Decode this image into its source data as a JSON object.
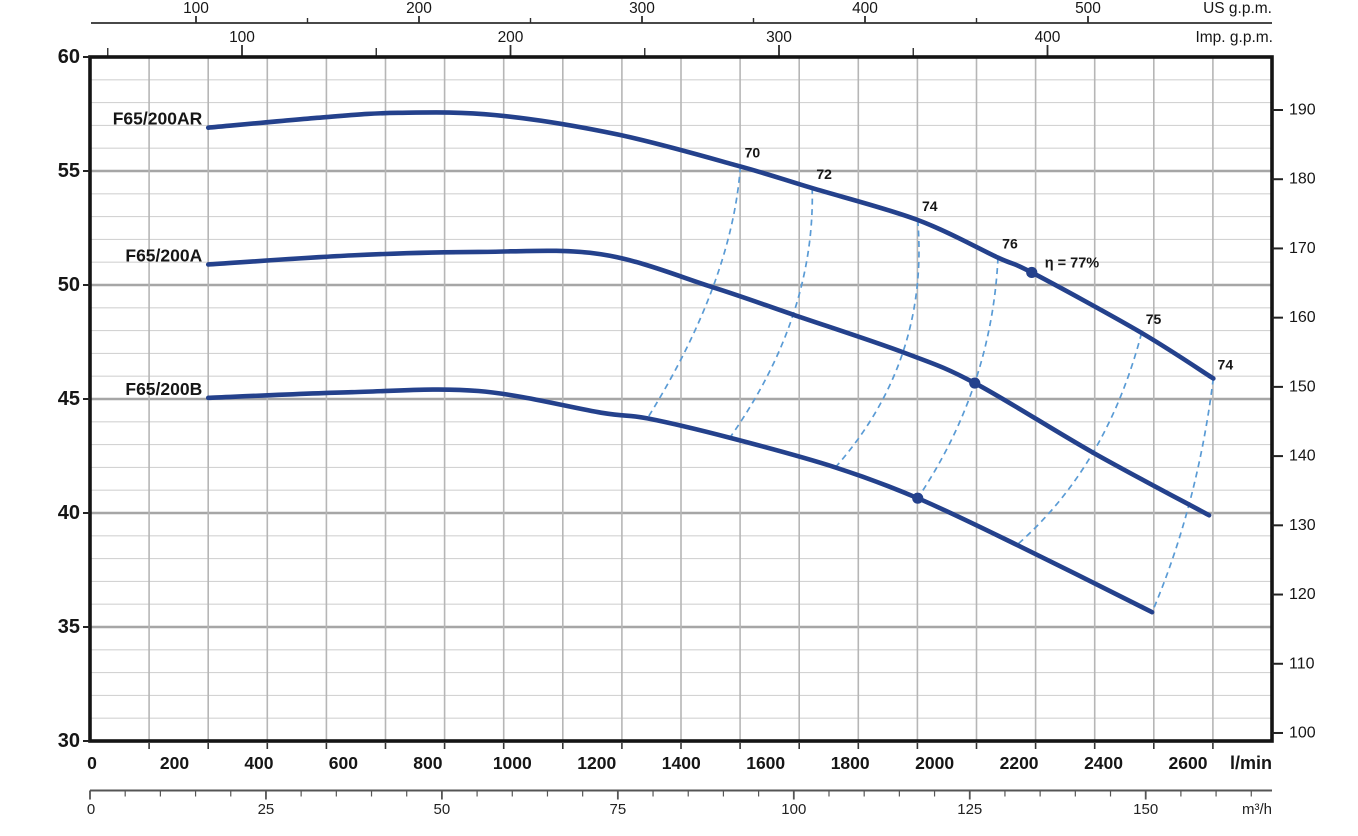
{
  "chart_data": {
    "type": "line",
    "title": "",
    "x_axes": {
      "lmin": {
        "unit_label": "l/min",
        "tick_labels": [
          0,
          200,
          400,
          600,
          800,
          1000,
          1200,
          1400,
          1600,
          1800,
          2000,
          2200,
          2400,
          2600
        ]
      },
      "m3h": {
        "unit_label": "m³/h",
        "major_ticks": [
          0,
          25,
          50,
          75,
          100,
          125,
          150
        ],
        "minor_tick_step": 5,
        "minor_tick_max": 165
      },
      "us_gpm": {
        "unit_label": "US g.p.m.",
        "major_ticks": [
          100,
          200,
          300,
          400,
          500
        ],
        "minor_ticks": [
          150,
          250,
          350,
          450
        ]
      },
      "imp_gpm": {
        "unit_label": "Imp. g.p.m.",
        "major_ticks": [
          100,
          200,
          300,
          400
        ],
        "minor_ticks": [
          50,
          150,
          250,
          350
        ]
      }
    },
    "y_axes": {
      "head_m": {
        "tick_labels": [
          30,
          35,
          40,
          45,
          50,
          55,
          60
        ],
        "range": [
          30,
          60
        ],
        "minor_step": 1,
        "major_step": 5
      },
      "head_ft": {
        "tick_labels": [
          100,
          110,
          120,
          130,
          140,
          150,
          160,
          170,
          180,
          190
        ]
      }
    },
    "grid": {
      "on": true,
      "v_columns": 20
    },
    "series": [
      {
        "name": "F65/200AR",
        "points": [
          [
            280,
            56.9
          ],
          [
            550,
            57.35
          ],
          [
            730,
            57.55
          ],
          [
            960,
            57.45
          ],
          [
            1250,
            56.6
          ],
          [
            1540,
            55.2
          ],
          [
            1710,
            54.25
          ],
          [
            1960,
            52.85
          ],
          [
            2150,
            51.2
          ],
          [
            2230,
            50.55
          ],
          [
            2490,
            47.9
          ],
          [
            2660,
            45.9
          ]
        ]
      },
      {
        "name": "F65/200A",
        "points": [
          [
            280,
            50.9
          ],
          [
            620,
            51.3
          ],
          [
            920,
            51.45
          ],
          [
            1210,
            51.35
          ],
          [
            1475,
            49.9
          ],
          [
            1665,
            48.7
          ],
          [
            1925,
            47.05
          ],
          [
            2095,
            45.7
          ],
          [
            2375,
            42.65
          ],
          [
            2650,
            39.9
          ]
        ]
      },
      {
        "name": "F65/200B",
        "points": [
          [
            280,
            45.05
          ],
          [
            620,
            45.3
          ],
          [
            920,
            45.35
          ],
          [
            1210,
            44.4
          ],
          [
            1320,
            44.15
          ],
          [
            1515,
            43.3
          ],
          [
            1765,
            42.0
          ],
          [
            1960,
            40.65
          ],
          [
            2195,
            38.6
          ],
          [
            2515,
            35.65
          ]
        ]
      }
    ],
    "efficiency_lines": [
      {
        "label": "70",
        "crossings": [
          [
            1540,
            55.2
          ],
          [
            1475,
            49.9
          ],
          [
            1320,
            44.15
          ]
        ]
      },
      {
        "label": "72",
        "crossings": [
          [
            1710,
            54.25
          ],
          [
            1665,
            48.7
          ],
          [
            1515,
            43.3
          ]
        ]
      },
      {
        "label": "74",
        "crossings": [
          [
            1960,
            52.85
          ],
          [
            1925,
            47.05
          ],
          [
            1765,
            42.0
          ]
        ]
      },
      {
        "label": "76",
        "crossings": [
          [
            2150,
            51.2
          ],
          [
            2095,
            45.7
          ],
          [
            1960,
            40.65
          ]
        ]
      },
      {
        "label": "75",
        "crossings": [
          [
            2490,
            47.9
          ],
          [
            2375,
            42.65
          ],
          [
            2195,
            38.6
          ]
        ]
      },
      {
        "label": "74",
        "crossings": [
          [
            2660,
            45.9
          ],
          [
            2605,
            40.55
          ],
          [
            2515,
            35.65
          ]
        ]
      }
    ],
    "duty_points": [
      {
        "series": "F65/200AR",
        "flow_lmin": 2230,
        "head_m": 50.55,
        "label": "η = 77%"
      },
      {
        "series": "F65/200A",
        "flow_lmin": 2095,
        "head_m": 45.7,
        "label": ""
      },
      {
        "series": "F65/200B",
        "flow_lmin": 1960,
        "head_m": 40.65,
        "label": ""
      }
    ],
    "colors": {
      "curve_navy": "#24418c",
      "efficiency_blue": "#5a9bd5",
      "text_black": "#161616",
      "frame_black": "#141414",
      "grid_minor": "#d3d3d3",
      "grid_major": "#a6a6a6",
      "grid_vertical": "#b6b6b6",
      "ruler_gray": "#444444",
      "background": "#ffffff"
    }
  }
}
